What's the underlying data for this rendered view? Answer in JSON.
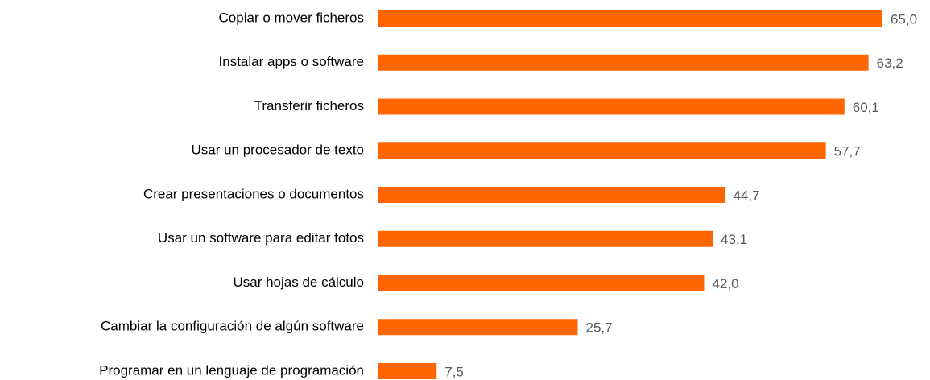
{
  "chart_data": {
    "type": "bar",
    "orientation": "horizontal",
    "color": "#ff6600",
    "categories": [
      "Copiar o mover ficheros",
      "Instalar apps o software",
      "Transferir ficheros",
      "Usar un procesador de texto",
      "Crear presentaciones o documentos",
      "Usar un software para editar fotos",
      "Usar hojas de cálculo",
      "Cambiar la configuración de algún software",
      "Programar en un lenguaje de programación"
    ],
    "values": [
      65.0,
      63.2,
      60.1,
      57.7,
      44.7,
      43.1,
      42.0,
      25.7,
      7.5
    ],
    "value_labels": [
      "65,0",
      "63,2",
      "60,1",
      "57,7",
      "44,7",
      "43,1",
      "42,0",
      "25,7",
      "7,5"
    ]
  }
}
